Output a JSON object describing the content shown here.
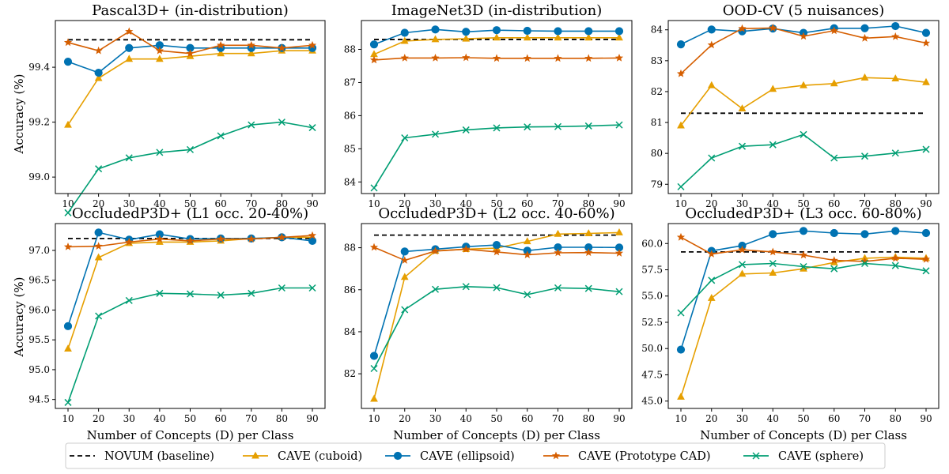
{
  "chart_data": {
    "type": "line",
    "legend": {
      "position": "bottom-center",
      "entries": [
        {
          "key": "novum",
          "label": "NOVUM (baseline)"
        },
        {
          "key": "cuboid",
          "label": "CAVE (cuboid)"
        },
        {
          "key": "ellipsoid",
          "label": "CAVE (ellipsoid)"
        },
        {
          "key": "prototype",
          "label": "CAVE (Prototype CAD)"
        },
        {
          "key": "sphere",
          "label": "CAVE (sphere)"
        }
      ]
    },
    "styles": {
      "novum": {
        "color": "#000000",
        "marker": "none",
        "dash": true
      },
      "cuboid": {
        "color": "#E69F00",
        "marker": "triangle"
      },
      "ellipsoid": {
        "color": "#0072B2",
        "marker": "circle"
      },
      "prototype": {
        "color": "#D55E00",
        "marker": "star"
      },
      "sphere": {
        "color": "#009E73",
        "marker": "x"
      }
    },
    "xlabel": "Number of Concepts (D) per Class",
    "ylabel": "Accuracy (%)",
    "x": [
      10,
      20,
      30,
      40,
      50,
      60,
      70,
      80,
      90
    ],
    "panels": [
      {
        "title": "Pascal3D+ (in-distribution)",
        "ylim": [
          98.94,
          99.57
        ],
        "yticks": [
          99.0,
          99.2,
          99.4
        ],
        "tick_format": 1,
        "baseline": 99.5,
        "series": {
          "cuboid": [
            99.19,
            99.36,
            99.43,
            99.43,
            99.44,
            99.45,
            99.45,
            99.46,
            99.46
          ],
          "ellipsoid": [
            99.42,
            99.38,
            99.47,
            99.48,
            99.47,
            99.47,
            99.47,
            99.47,
            99.47
          ],
          "prototype": [
            99.49,
            99.46,
            99.53,
            99.46,
            99.45,
            99.48,
            99.48,
            99.47,
            99.48
          ],
          "sphere": [
            98.87,
            99.03,
            99.07,
            99.09,
            99.1,
            99.15,
            99.19,
            99.2,
            99.18
          ]
        }
      },
      {
        "title": "ImageNet3D (in-distribution)",
        "ylim": [
          83.65,
          88.87
        ],
        "yticks": [
          84,
          85,
          86,
          87,
          88
        ],
        "tick_format": 0,
        "baseline": 88.3,
        "series": {
          "cuboid": [
            87.85,
            88.25,
            88.3,
            88.32,
            88.35,
            88.35,
            88.35,
            88.35,
            88.35
          ],
          "ellipsoid": [
            88.15,
            88.5,
            88.6,
            88.53,
            88.58,
            88.56,
            88.55,
            88.55,
            88.55
          ],
          "prototype": [
            87.68,
            87.74,
            87.74,
            87.75,
            87.73,
            87.73,
            87.73,
            87.73,
            87.74
          ],
          "sphere": [
            83.82,
            85.33,
            85.44,
            85.57,
            85.63,
            85.66,
            85.67,
            85.69,
            85.72
          ]
        }
      },
      {
        "title": "OOD-CV (5 nuisances)",
        "ylim": [
          78.7,
          84.3
        ],
        "yticks": [
          79,
          80,
          81,
          82,
          83,
          84
        ],
        "tick_format": 0,
        "baseline": 81.3,
        "series": {
          "cuboid": [
            80.9,
            82.2,
            81.45,
            82.08,
            82.2,
            82.26,
            82.45,
            82.42,
            82.3
          ],
          "ellipsoid": [
            83.53,
            84.01,
            83.95,
            84.04,
            83.9,
            84.05,
            84.05,
            84.12,
            83.9
          ],
          "prototype": [
            82.58,
            83.51,
            84.04,
            84.06,
            83.79,
            83.97,
            83.73,
            83.78,
            83.57
          ],
          "sphere": [
            78.92,
            79.85,
            80.23,
            80.28,
            80.61,
            79.85,
            79.91,
            80.01,
            80.13
          ]
        }
      },
      {
        "title": "OccludedP3D+ (L1 occ. 20-40%)",
        "ylim": [
          94.35,
          97.45
        ],
        "yticks": [
          94.5,
          95.0,
          95.5,
          96.0,
          96.5,
          97.0
        ],
        "tick_format": 1,
        "baseline": 97.2,
        "series": {
          "cuboid": [
            95.35,
            96.88,
            97.12,
            97.14,
            97.14,
            97.16,
            97.2,
            97.22,
            97.22
          ],
          "ellipsoid": [
            95.73,
            97.3,
            97.18,
            97.27,
            97.19,
            97.2,
            97.2,
            97.22,
            97.16
          ],
          "prototype": [
            97.06,
            97.07,
            97.14,
            97.19,
            97.16,
            97.19,
            97.19,
            97.22,
            97.25
          ],
          "sphere": [
            94.45,
            95.9,
            96.16,
            96.28,
            96.27,
            96.25,
            96.28,
            96.37,
            96.37
          ]
        }
      },
      {
        "title": "OccludedP3D+ (L2 occ. 40-60%)",
        "ylim": [
          80.35,
          89.15
        ],
        "yticks": [
          82,
          84,
          86,
          88
        ],
        "tick_format": 0,
        "baseline": 88.6,
        "series": {
          "cuboid": [
            80.8,
            86.6,
            87.85,
            87.93,
            87.98,
            88.3,
            88.65,
            88.68,
            88.72
          ],
          "ellipsoid": [
            82.85,
            87.82,
            87.93,
            88.05,
            88.13,
            87.86,
            88.02,
            88.02,
            88.01
          ],
          "prototype": [
            88.02,
            87.4,
            87.84,
            87.93,
            87.8,
            87.66,
            87.76,
            87.77,
            87.74
          ],
          "sphere": [
            82.25,
            85.05,
            86.02,
            86.15,
            86.1,
            85.77,
            86.09,
            86.06,
            85.91
          ]
        }
      },
      {
        "title": "OccludedP3D+ (L3 occ. 60-80%)",
        "ylim": [
          44.3,
          61.9
        ],
        "yticks": [
          45.0,
          47.5,
          50.0,
          52.5,
          55.0,
          57.5,
          60.0
        ],
        "tick_format": 1,
        "baseline": 59.2,
        "series": {
          "cuboid": [
            45.4,
            54.8,
            57.1,
            57.2,
            57.6,
            58.2,
            58.6,
            58.7,
            58.6
          ],
          "ellipsoid": [
            49.9,
            59.3,
            59.8,
            60.9,
            61.2,
            61.0,
            60.9,
            61.2,
            61.0
          ],
          "prototype": [
            60.6,
            59.0,
            59.4,
            59.2,
            58.9,
            58.4,
            58.3,
            58.6,
            58.5
          ],
          "sphere": [
            53.4,
            56.5,
            58.0,
            58.1,
            57.8,
            57.6,
            58.1,
            57.9,
            57.4
          ]
        }
      }
    ]
  }
}
